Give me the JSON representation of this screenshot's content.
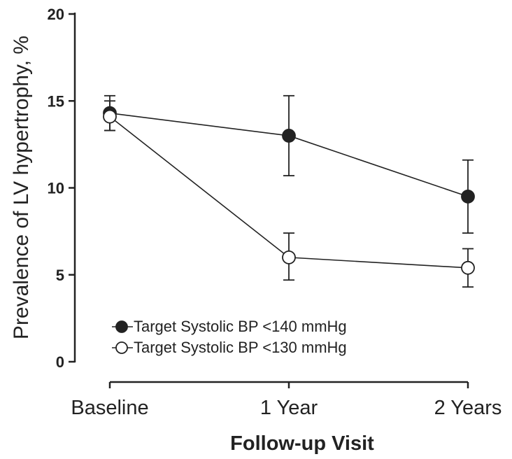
{
  "chart_data": {
    "type": "line",
    "categories": [
      "Baseline",
      "1 Year",
      "2 Years"
    ],
    "xlabel": "Follow-up Visit",
    "ylabel": "Prevalence of LV hypertrophy, %",
    "ylim": [
      0,
      20
    ],
    "yticks": [
      0,
      5,
      10,
      15,
      20
    ],
    "grid": false,
    "legend_position": "bottom-left",
    "series": [
      {
        "name": "Target Systolic BP <140 mmHg",
        "marker": "filled-circle",
        "color": "#222222",
        "values": [
          14.3,
          13.0,
          9.5
        ],
        "error_low": [
          13.3,
          10.7,
          7.4
        ],
        "error_high": [
          15.3,
          15.3,
          11.6
        ]
      },
      {
        "name": "Target Systolic BP <130 mmHg",
        "marker": "open-circle",
        "color": "#222222",
        "values": [
          14.1,
          6.0,
          5.4
        ],
        "error_low": [
          13.3,
          4.7,
          4.3
        ],
        "error_high": [
          15.0,
          7.4,
          6.5
        ]
      }
    ]
  }
}
